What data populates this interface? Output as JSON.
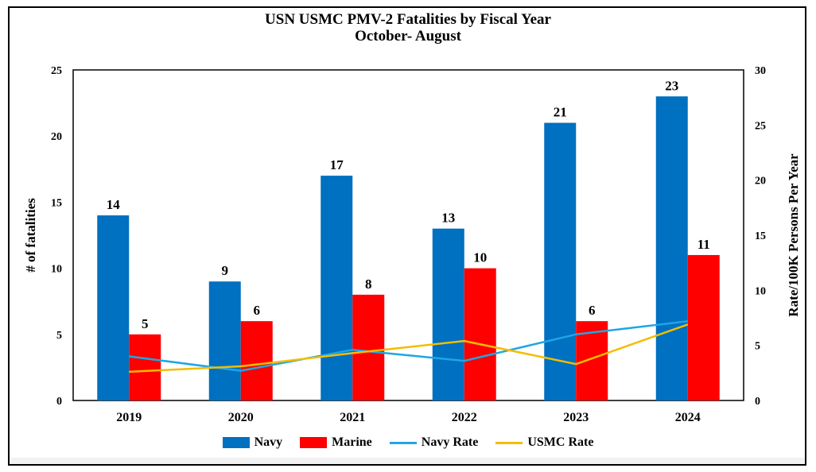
{
  "chart_data": {
    "type": "bar",
    "title": "USN USMC PMV-2 Fatalities by Fiscal Year",
    "subtitle": "October- August",
    "categories": [
      "2019",
      "2020",
      "2021",
      "2022",
      "2023",
      "2024"
    ],
    "series": [
      {
        "name": "Navy",
        "kind": "bar",
        "axis": "left",
        "color": "#0070C0",
        "values": [
          14,
          9,
          17,
          13,
          21,
          23
        ]
      },
      {
        "name": "Marine",
        "kind": "bar",
        "axis": "left",
        "color": "#FF0000",
        "values": [
          5,
          6,
          8,
          10,
          6,
          11
        ]
      },
      {
        "name": "Navy Rate",
        "kind": "line",
        "axis": "right",
        "color": "#1EA6E6",
        "values": [
          4.0,
          2.7,
          4.6,
          3.6,
          6.0,
          7.2
        ]
      },
      {
        "name": "USMC Rate",
        "kind": "line",
        "axis": "right",
        "color": "#F5BC00",
        "values": [
          2.6,
          3.1,
          4.3,
          5.4,
          3.3,
          6.9
        ]
      }
    ],
    "ylabel": "# of fatalities",
    "y2label": "Rate/100K Persons Per Year",
    "ylim": [
      0,
      25
    ],
    "y2lim": [
      0,
      30
    ],
    "yticks": [
      "0",
      "5",
      "10",
      "15",
      "20",
      "25"
    ],
    "y2ticks": [
      "0",
      "5",
      "10",
      "15",
      "20",
      "25",
      "30"
    ],
    "legend_position": "bottom",
    "grid": false
  }
}
